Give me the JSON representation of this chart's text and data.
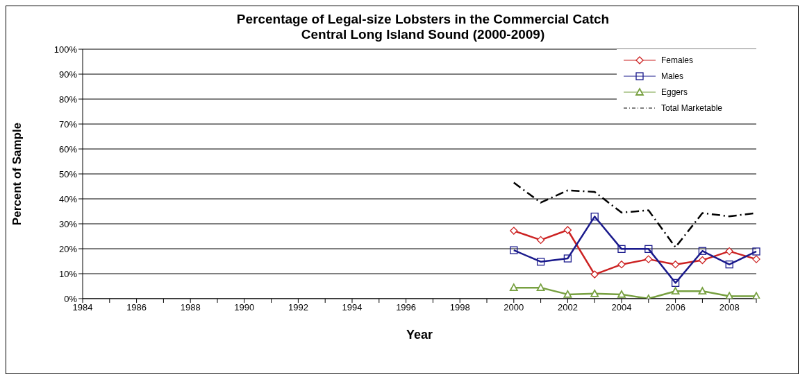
{
  "chart_data": {
    "type": "line",
    "title": "Percentage of Legal-size Lobsters in the Commercial Catch\nCentral Long Island Sound (2000-2009)",
    "xlabel": "Year",
    "ylabel": "Percent of Sample",
    "categories": [
      "1984",
      null,
      "1986",
      null,
      "1988",
      null,
      "1990",
      null,
      "1992",
      null,
      "1994",
      null,
      "1996",
      null,
      "1998",
      null,
      "2000",
      null,
      "2002",
      null,
      "2004",
      null,
      "2006",
      null,
      "2008",
      null
    ],
    "series": [
      {
        "name": "Females",
        "color": "#cc2222",
        "marker": "diamond",
        "line_style": "solid",
        "values": [
          null,
          null,
          null,
          null,
          null,
          null,
          null,
          null,
          null,
          null,
          null,
          null,
          null,
          null,
          null,
          null,
          27.2,
          23.5,
          27.5,
          9.7,
          13.7,
          15.8,
          13.7,
          15.4,
          19.0,
          15.8
        ]
      },
      {
        "name": "Males",
        "color": "#1a1a8c",
        "marker": "square",
        "line_style": "solid",
        "values": [
          null,
          null,
          null,
          null,
          null,
          null,
          null,
          null,
          null,
          null,
          null,
          null,
          null,
          null,
          null,
          null,
          19.4,
          14.8,
          16.1,
          32.9,
          19.9,
          19.9,
          6.3,
          19.1,
          13.7,
          18.9
        ]
      },
      {
        "name": "Eggers",
        "color": "#77a040",
        "marker": "triangle",
        "line_style": "solid",
        "values": [
          null,
          null,
          null,
          null,
          null,
          null,
          null,
          null,
          null,
          null,
          null,
          null,
          null,
          null,
          null,
          null,
          4.4,
          4.4,
          1.7,
          2.0,
          1.7,
          0,
          3.0,
          3.0,
          1.0,
          1.0
        ]
      },
      {
        "name": "Total Marketable",
        "color": "#000000",
        "marker": "none",
        "line_style": "dashed",
        "values": [
          null,
          null,
          null,
          null,
          null,
          null,
          null,
          null,
          null,
          null,
          null,
          null,
          null,
          null,
          null,
          null,
          46.5,
          38.5,
          43.4,
          42.8,
          34.5,
          35.4,
          20.6,
          34.3,
          33.0,
          34.3
        ]
      }
    ],
    "ylim": [
      0,
      100
    ],
    "yticks": [
      {
        "value": 0,
        "label": "0%"
      },
      {
        "value": 10,
        "label": "10%"
      },
      {
        "value": 20,
        "label": "20%"
      },
      {
        "value": 30,
        "label": "30%"
      },
      {
        "value": 40,
        "label": "40%"
      },
      {
        "value": 50,
        "label": "50%"
      },
      {
        "value": 60,
        "label": "60%"
      },
      {
        "value": 70,
        "label": "70%"
      },
      {
        "value": 80,
        "label": "80%"
      },
      {
        "value": 90,
        "label": "90%"
      },
      {
        "value": 100,
        "label": "100%"
      }
    ],
    "grid": "y",
    "legend": "top right"
  }
}
